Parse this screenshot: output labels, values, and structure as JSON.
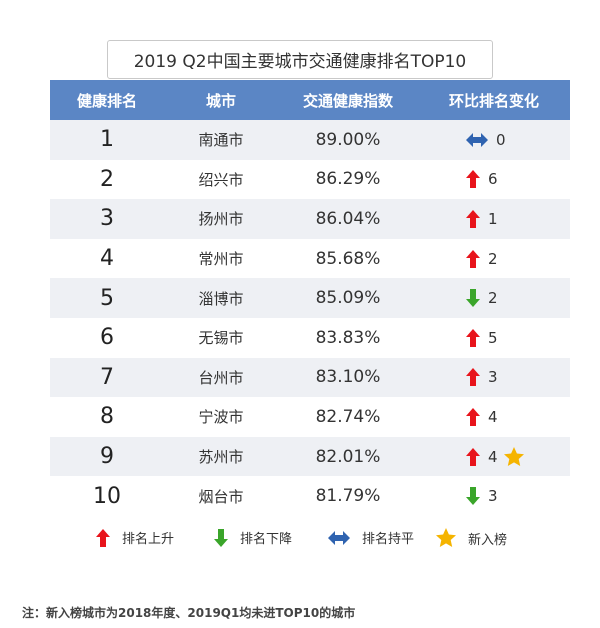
{
  "title": "2019 Q2中国主要城市交通健康排名TOP10",
  "table": {
    "headers": [
      "健康排名",
      "城市",
      "交通健康指数",
      "环比排名变化"
    ],
    "rows": [
      {
        "rank": "1",
        "city": "南通市",
        "index": "89.00%",
        "change_icon": "flat-arrow-icon",
        "change": "0"
      },
      {
        "rank": "2",
        "city": "绍兴市",
        "index": "86.29%",
        "change_icon": "up-arrow-icon",
        "change": "6"
      },
      {
        "rank": "3",
        "city": "扬州市",
        "index": "86.04%",
        "change_icon": "up-arrow-icon",
        "change": "1"
      },
      {
        "rank": "4",
        "city": "常州市",
        "index": "85.68%",
        "change_icon": "up-arrow-icon",
        "change": "2"
      },
      {
        "rank": "5",
        "city": "淄博市",
        "index": "85.09%",
        "change_icon": "down-arrow-icon",
        "change": "2"
      },
      {
        "rank": "6",
        "city": "无锡市",
        "index": "83.83%",
        "change_icon": "up-arrow-icon",
        "change": "5"
      },
      {
        "rank": "7",
        "city": "台州市",
        "index": "83.10%",
        "change_icon": "up-arrow-icon",
        "change": "3"
      },
      {
        "rank": "8",
        "city": "宁波市",
        "index": "82.74%",
        "change_icon": "up-arrow-icon",
        "change": "4"
      },
      {
        "rank": "9",
        "city": "苏州市",
        "index": "82.01%",
        "change_icon": "up-arrow-icon",
        "change": "4",
        "new_entry": true
      },
      {
        "rank": "10",
        "city": "烟台市",
        "index": "81.79%",
        "change_icon": "down-arrow-icon",
        "change": "3"
      }
    ]
  },
  "legend": [
    {
      "icon": "up-arrow-icon",
      "label": "排名上升"
    },
    {
      "icon": "down-arrow-icon",
      "label": "排名下降"
    },
    {
      "icon": "flat-arrow-icon",
      "label": "排名持平"
    },
    {
      "icon": "star-icon",
      "label": "新入榜"
    }
  ],
  "note": "注：新入榜城市为2018年度、2019Q1均未进TOP10的城市",
  "colors": {
    "header_bg": "#5b86c5",
    "row_alt_bg": "#eef0f4",
    "up": "#e8141b",
    "down": "#3aa52a",
    "flat": "#2f63b0",
    "star": "#f5b400"
  }
}
